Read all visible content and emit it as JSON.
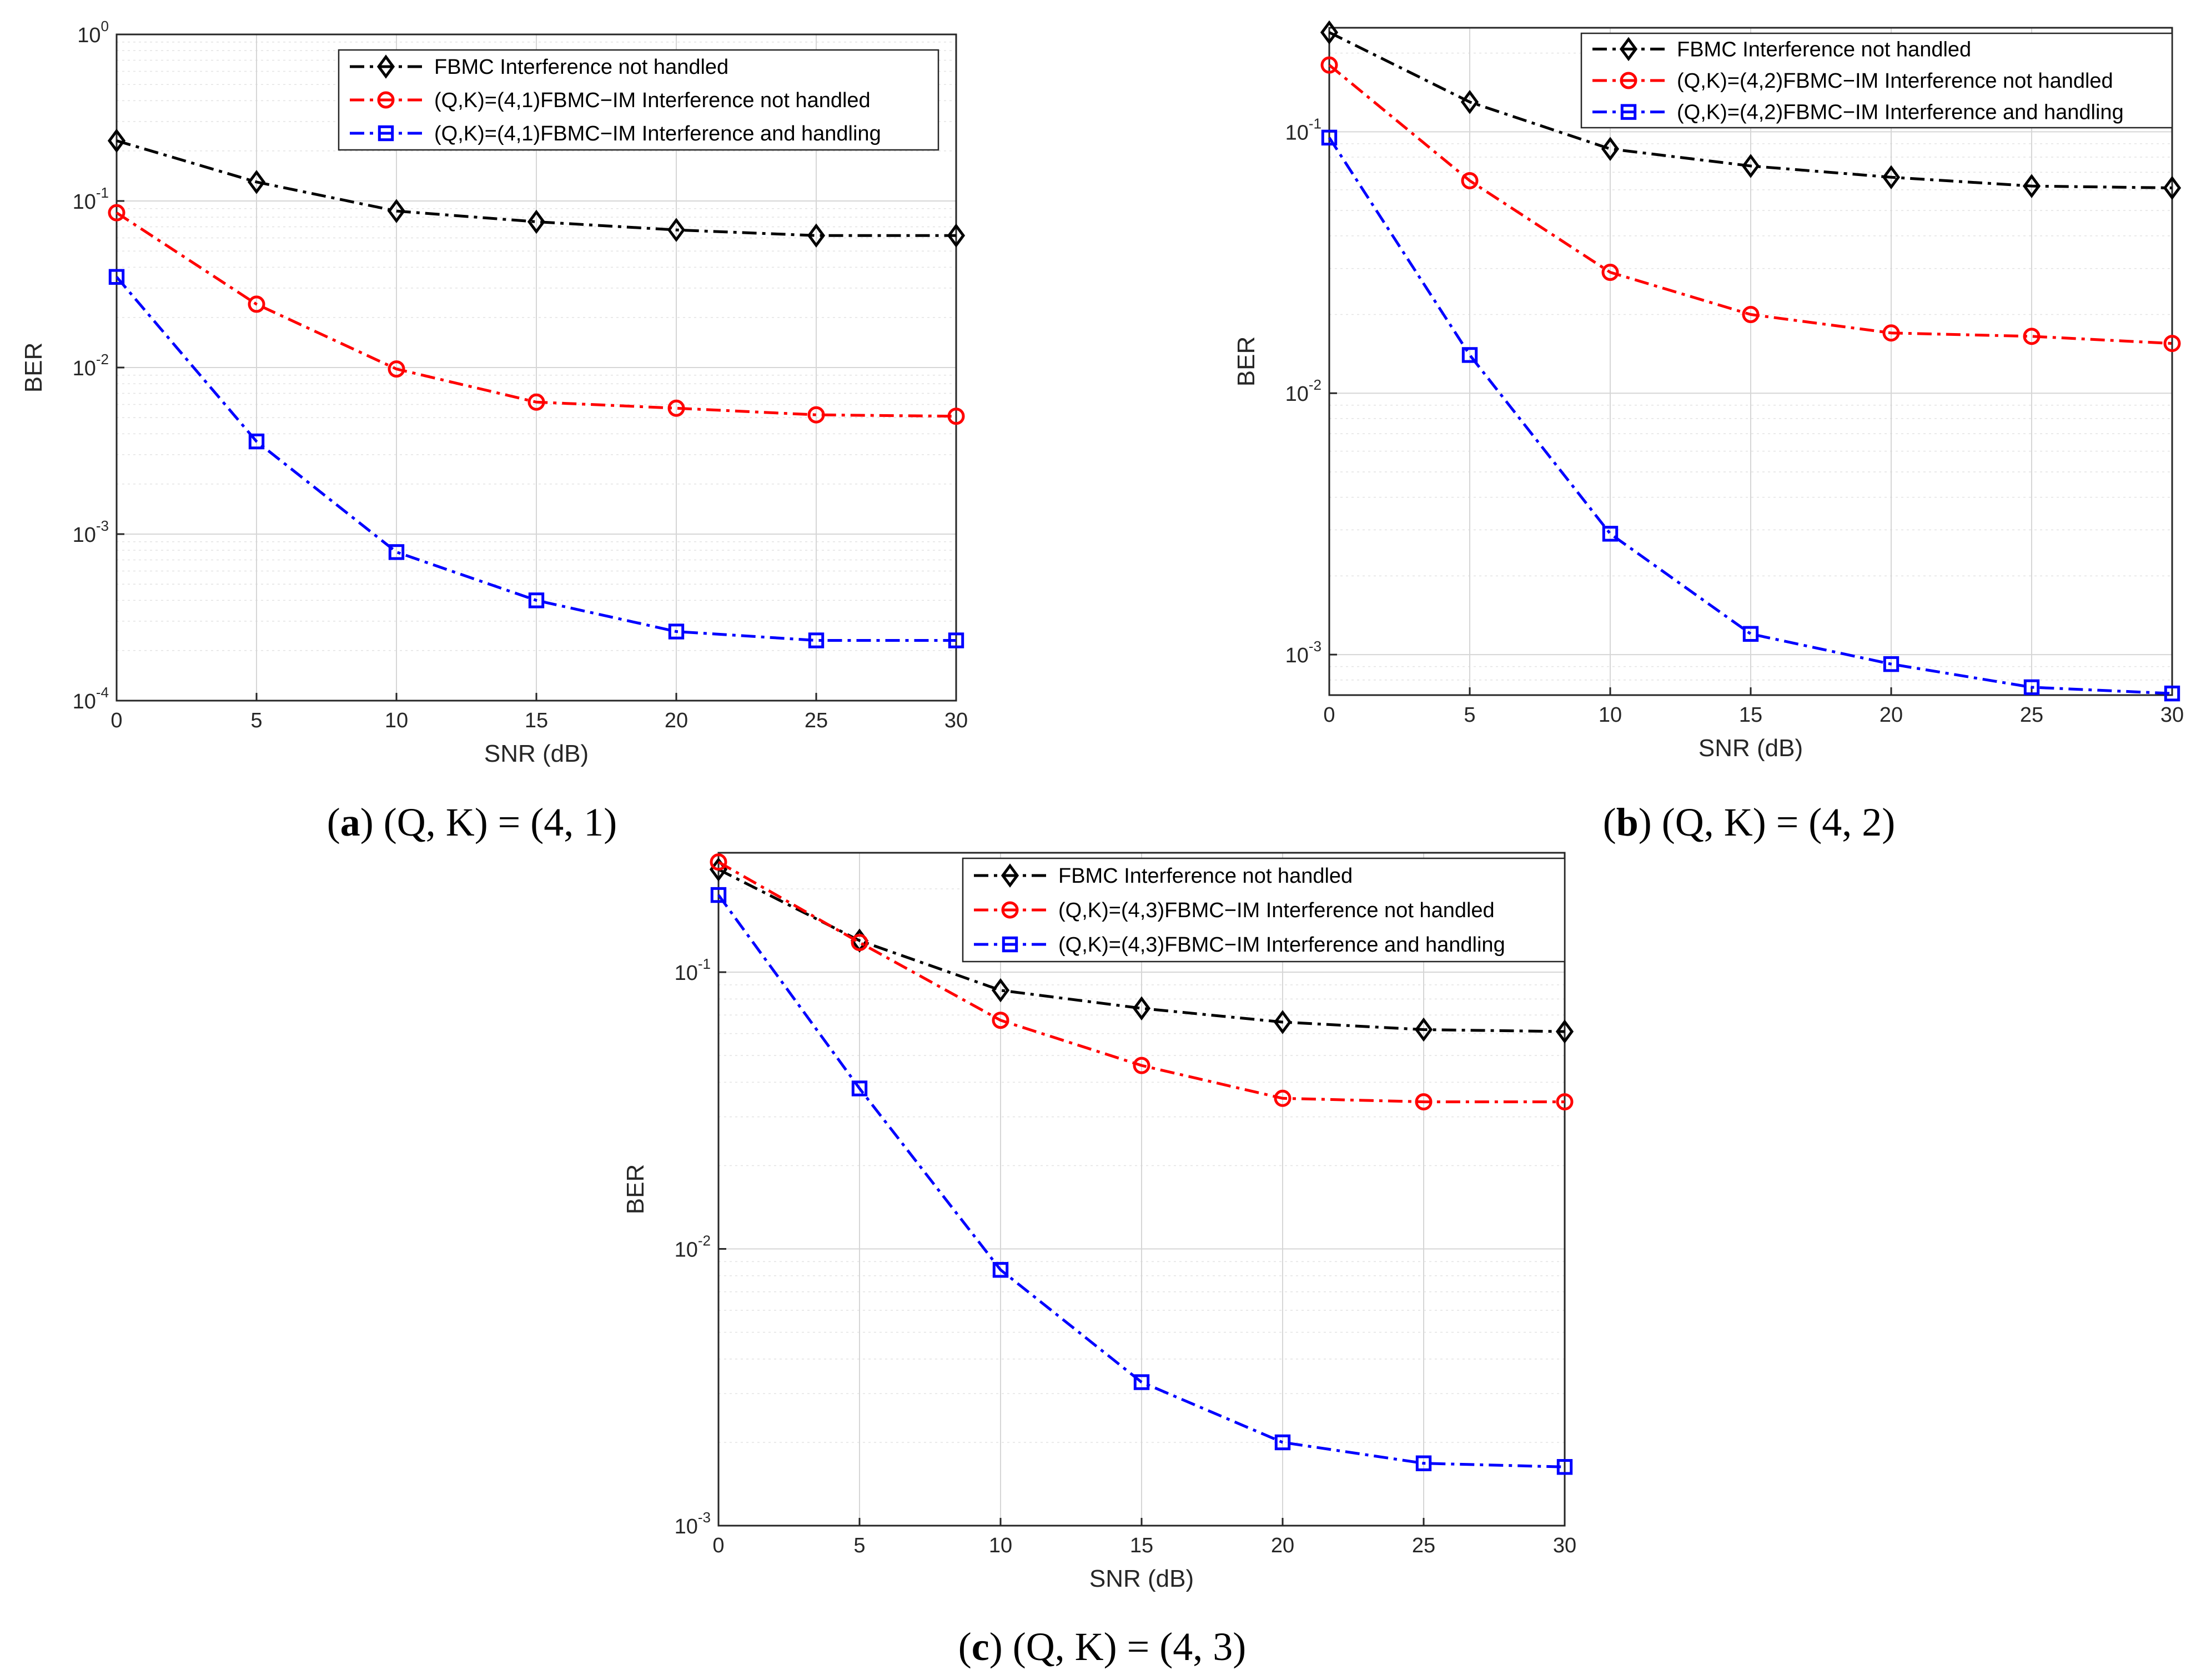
{
  "chart_data": [
    {
      "type": "line",
      "panel": "a",
      "caption": {
        "letter": "a",
        "text": "(Q, K) = (4, 1)"
      },
      "xlabel": "SNR (dB)",
      "ylabel": "BER",
      "yscale": "log",
      "xlim": [
        0,
        30
      ],
      "ylim": [
        0.0001,
        1
      ],
      "grid": true,
      "legend_position": "top-right",
      "x": [
        0,
        5,
        10,
        15,
        20,
        25,
        30
      ],
      "x_ticks": [
        "0",
        "5",
        "10",
        "15",
        "20",
        "25",
        "30"
      ],
      "y_ticks": [
        {
          "value": 1,
          "base": "10",
          "exp": "0"
        },
        {
          "value": 0.1,
          "base": "10",
          "exp": "-1"
        },
        {
          "value": 0.01,
          "base": "10",
          "exp": "-2"
        },
        {
          "value": 0.001,
          "base": "10",
          "exp": "-3"
        },
        {
          "value": 0.0001,
          "base": "10",
          "exp": "-4"
        }
      ],
      "series": [
        {
          "name": "FBMC Interference not handled",
          "color": "#000000",
          "marker": "diamond",
          "values": [
            0.23,
            0.13,
            0.087,
            0.075,
            0.067,
            0.062,
            0.062
          ]
        },
        {
          "name": "(Q,K)=(4,1)FBMC−IM Interference not handled",
          "color": "#ff0000",
          "marker": "circle",
          "values": [
            0.085,
            0.024,
            0.0098,
            0.0062,
            0.0057,
            0.0052,
            0.0051
          ]
        },
        {
          "name": "(Q,K)=(4,1)FBMC−IM Interference and handling",
          "color": "#0000ff",
          "marker": "square",
          "values": [
            0.035,
            0.0036,
            0.00078,
            0.0004,
            0.00026,
            0.00023,
            0.00023
          ]
        }
      ]
    },
    {
      "type": "line",
      "panel": "b",
      "caption": {
        "letter": "b",
        "text": "(Q, K) = (4, 2)"
      },
      "xlabel": "SNR (dB)",
      "ylabel": "BER",
      "yscale": "log",
      "xlim": [
        0,
        30
      ],
      "ylim": [
        0.0007,
        0.25
      ],
      "grid": true,
      "legend_position": "top-right",
      "x": [
        0,
        5,
        10,
        15,
        20,
        25,
        30
      ],
      "x_ticks": [
        "0",
        "5",
        "10",
        "15",
        "20",
        "25",
        "30"
      ],
      "y_ticks": [
        {
          "value": 0.1,
          "base": "10",
          "exp": "-1"
        },
        {
          "value": 0.01,
          "base": "10",
          "exp": "-2"
        },
        {
          "value": 0.001,
          "base": "10",
          "exp": "-3"
        }
      ],
      "series": [
        {
          "name": "FBMC Interference not handled",
          "color": "#000000",
          "marker": "diamond",
          "values": [
            0.24,
            0.13,
            0.086,
            0.074,
            0.067,
            0.062,
            0.061
          ]
        },
        {
          "name": "(Q,K)=(4,2)FBMC−IM Interference not handled",
          "color": "#ff0000",
          "marker": "circle",
          "values": [
            0.18,
            0.065,
            0.029,
            0.02,
            0.017,
            0.0165,
            0.0155
          ]
        },
        {
          "name": "(Q,K)=(4,2)FBMC−IM Interference and handling",
          "color": "#0000ff",
          "marker": "square",
          "values": [
            0.095,
            0.014,
            0.0029,
            0.0012,
            0.00092,
            0.00075,
            0.00071
          ]
        }
      ]
    },
    {
      "type": "line",
      "panel": "c",
      "caption": {
        "letter": "c",
        "text": "(Q, K) = (4, 3)"
      },
      "xlabel": "SNR (dB)",
      "ylabel": "BER",
      "yscale": "log",
      "xlim": [
        0,
        30
      ],
      "ylim": [
        0.001,
        0.27
      ],
      "grid": true,
      "legend_position": "top-right",
      "x": [
        0,
        5,
        10,
        15,
        20,
        25,
        30
      ],
      "x_ticks": [
        "0",
        "5",
        "10",
        "15",
        "20",
        "25",
        "30"
      ],
      "y_ticks": [
        {
          "value": 0.1,
          "base": "10",
          "exp": "-1"
        },
        {
          "value": 0.01,
          "base": "10",
          "exp": "-2"
        },
        {
          "value": 0.001,
          "base": "10",
          "exp": "-3"
        }
      ],
      "series": [
        {
          "name": "FBMC Interference not handled",
          "color": "#000000",
          "marker": "diamond",
          "values": [
            0.235,
            0.13,
            0.086,
            0.074,
            0.066,
            0.062,
            0.061
          ]
        },
        {
          "name": "(Q,K)=(4,3)FBMC−IM Interference not handled",
          "color": "#ff0000",
          "marker": "circle",
          "values": [
            0.25,
            0.128,
            0.067,
            0.046,
            0.035,
            0.034,
            0.034
          ]
        },
        {
          "name": "(Q,K)=(4,3)FBMC−IM Interference and handling",
          "color": "#0000ff",
          "marker": "square",
          "values": [
            0.19,
            0.038,
            0.0084,
            0.0033,
            0.002,
            0.00168,
            0.00163
          ]
        }
      ]
    }
  ]
}
